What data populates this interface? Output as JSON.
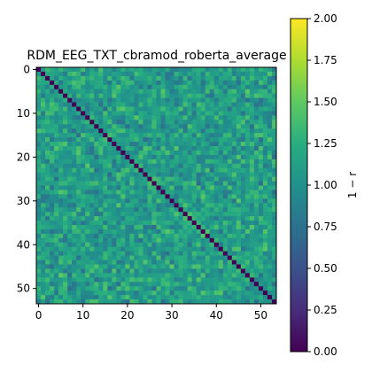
{
  "chart_data": {
    "type": "heatmap",
    "title": "RDM_EEG_TXT_cbramod_roberta_average",
    "size": 54,
    "diagonal_value": 0.0,
    "off_diagonal_typical_range": [
      0.7,
      1.5
    ],
    "colormap": "viridis",
    "x_ticks": [
      0,
      10,
      20,
      30,
      40,
      50
    ],
    "y_ticks": [
      0,
      10,
      20,
      30,
      40,
      50
    ],
    "colorbar": {
      "label": "1 − r",
      "range": [
        0.0,
        2.0
      ],
      "ticks": [
        "0.00",
        "0.25",
        "0.50",
        "0.75",
        "1.00",
        "1.25",
        "1.50",
        "1.75",
        "2.00"
      ]
    }
  }
}
